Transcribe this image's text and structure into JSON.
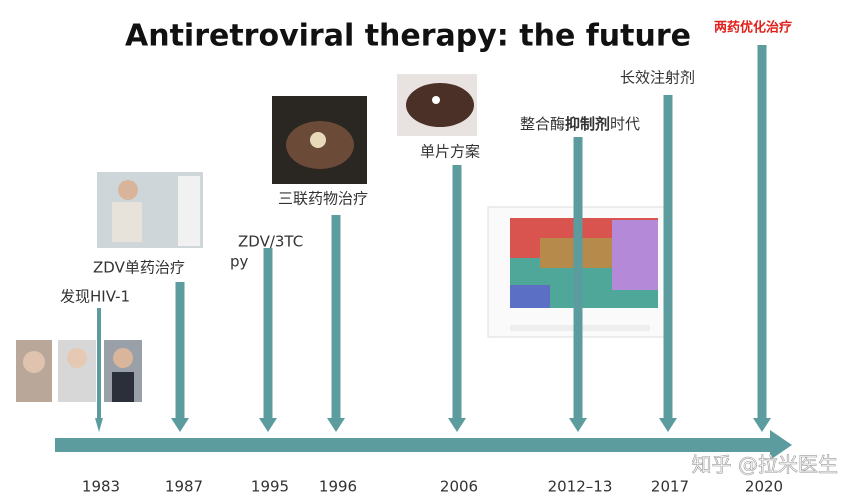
{
  "title": "Antiretroviral therapy: the future",
  "events": [
    {
      "year": "1983",
      "label": [
        "发现HIV-1"
      ]
    },
    {
      "year": "1987",
      "label": [
        "ZDV单药治疗"
      ]
    },
    {
      "year": "1995",
      "label": [
        "ZDV/3TC",
        "py"
      ]
    },
    {
      "year": "1996",
      "label": [
        "三联药物治疗"
      ]
    },
    {
      "year": "2006",
      "label": [
        "单片方案"
      ]
    },
    {
      "year": "2012–13",
      "label": [
        "整合酶",
        "抑制剂",
        "时代"
      ]
    },
    {
      "year": "2017",
      "label": [
        "长效注射剂"
      ]
    },
    {
      "year": "2020",
      "label": [
        "两药优化治疗"
      ]
    }
  ],
  "watermark": "知乎 @拉米医生"
}
